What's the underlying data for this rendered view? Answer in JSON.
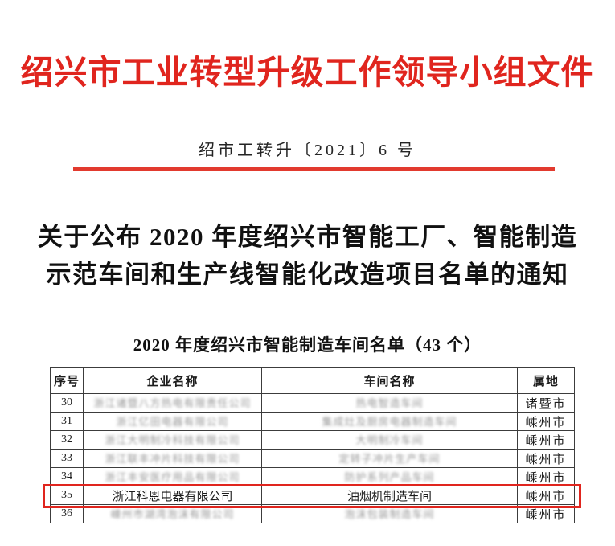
{
  "colors": {
    "header_red": "#e0251e",
    "divider_red": "#e23a2e",
    "highlight_red": "#e0251e"
  },
  "document": {
    "header_title": "绍兴市工业转型升级工作领导小组文件",
    "doc_number": "绍市工转升〔2021〕6 号",
    "main_title_line1": "关于公布 2020 年度绍兴市智能工厂、智能制造",
    "main_title_line2": "示范车间和生产线智能化改造项目名单的通知",
    "table_caption": "2020 年度绍兴市智能制造车间名单（43 个）"
  },
  "table": {
    "headers": [
      "序号",
      "企业名称",
      "车间名称",
      "属地"
    ],
    "rows": [
      {
        "no": "30",
        "company": "浙江诸暨八方热电有限责任公司",
        "company_blurred": true,
        "workshop": "热电智造车间",
        "workshop_blurred": true,
        "region": "诸暨市",
        "highlighted": false
      },
      {
        "no": "31",
        "company": "浙江亿田电器有限公司",
        "company_blurred": true,
        "workshop": "集成灶及厨房电器制造车间",
        "workshop_blurred": true,
        "region": "嵊州市",
        "highlighted": false
      },
      {
        "no": "32",
        "company": "浙江大明制冷科技有限公司",
        "company_blurred": true,
        "workshop": "大明制冷车间",
        "workshop_blurred": true,
        "region": "嵊州市",
        "highlighted": false
      },
      {
        "no": "33",
        "company": "浙江联丰冲片科技有限公司",
        "company_blurred": true,
        "workshop": "定转子冲片生产车间",
        "workshop_blurred": true,
        "region": "嵊州市",
        "highlighted": false
      },
      {
        "no": "34",
        "company": "浙江丰安医疗用品有限公司",
        "company_blurred": true,
        "workshop": "防护系列产品车间",
        "workshop_blurred": true,
        "region": "嵊州市",
        "highlighted": false
      },
      {
        "no": "35",
        "company": "浙江科恩电器有限公司",
        "company_blurred": false,
        "workshop": "油烟机制造车间",
        "workshop_blurred": false,
        "region": "嵊州市",
        "highlighted": true
      },
      {
        "no": "36",
        "company": "嵊州市湖湾泡沫有限公司",
        "company_blurred": true,
        "workshop": "泡沫包装制造车间",
        "workshop_blurred": true,
        "region": "嵊州市",
        "highlighted": false
      }
    ]
  }
}
